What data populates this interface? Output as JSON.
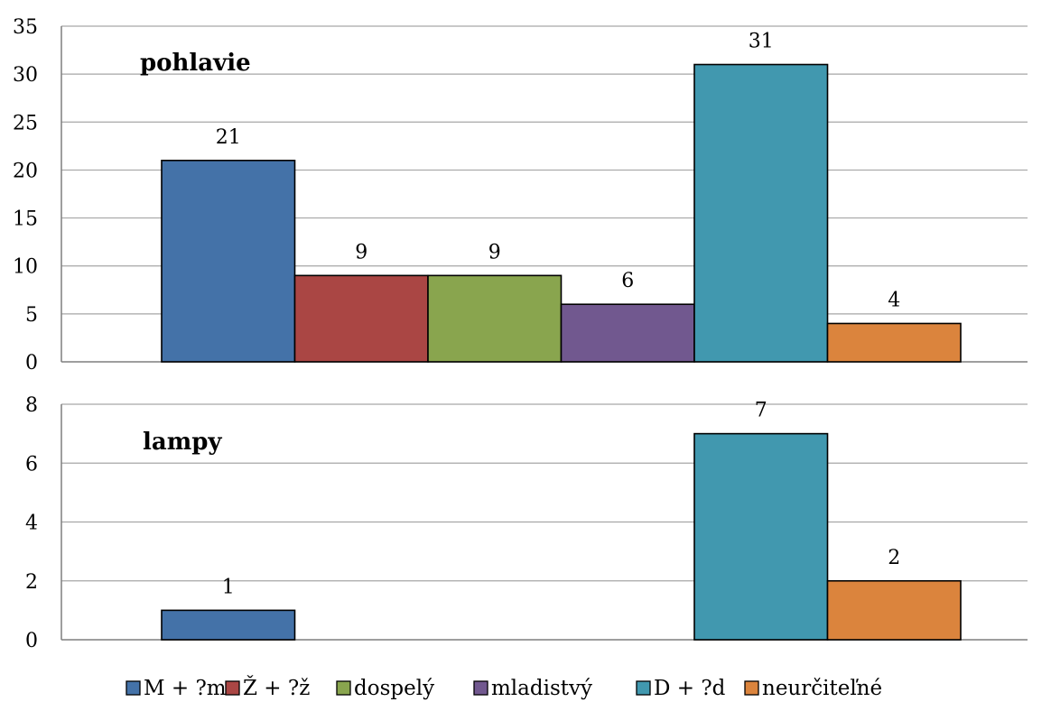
{
  "chart_data": [
    {
      "type": "bar",
      "title": "pohlavie",
      "categories": [
        "M + ?m",
        "Ž + ?ž",
        "dospelý",
        "mladistvý",
        "D + ?d",
        "neurčiteľné"
      ],
      "values": [
        21,
        9,
        9,
        6,
        31,
        4
      ],
      "ylim": [
        0,
        35
      ],
      "yticks": [
        0,
        5,
        10,
        15,
        20,
        25,
        30,
        35
      ],
      "grid": true
    },
    {
      "type": "bar",
      "title": "lampy",
      "categories": [
        "M + ?m",
        "Ž + ?ž",
        "dospelý",
        "mladistvý",
        "D + ?d",
        "neurčiteľné"
      ],
      "values": [
        1,
        0,
        0,
        0,
        7,
        2
      ],
      "ylim": [
        0,
        8
      ],
      "yticks": [
        0,
        2,
        4,
        6,
        8
      ],
      "grid": true
    }
  ],
  "legend": {
    "placement": "bottom",
    "items": [
      "M + ?m",
      "Ž + ?ž",
      "dospelý",
      "mladistvý",
      "D + ?d",
      "neurčiteľné"
    ]
  },
  "colors": [
    "#4472a8",
    "#aa4644",
    "#89a54e",
    "#71588f",
    "#4198af",
    "#db843d"
  ]
}
